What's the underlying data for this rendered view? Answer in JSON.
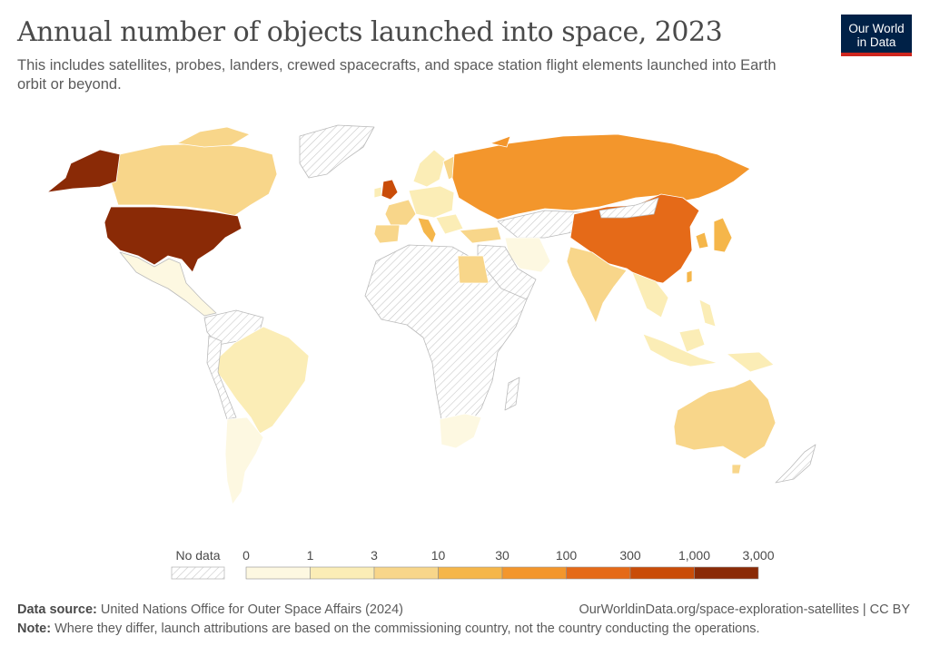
{
  "title": "Annual number of objects launched into space, 2023",
  "subtitle": "This includes satellites, probes, landers, crewed spacecrafts, and space station flight elements launched into Earth orbit or beyond.",
  "logo": {
    "line1": "Our World",
    "line2": "in Data"
  },
  "legend": {
    "no_data_label": "No data",
    "tick_labels": [
      "0",
      "1",
      "3",
      "10",
      "30",
      "100",
      "300",
      "1,000",
      "3,000"
    ],
    "colors": [
      "#fdf8e1",
      "#fbedb6",
      "#f8d68a",
      "#f5b64a",
      "#f3962c",
      "#e56a18",
      "#c94c08",
      "#8a2a06"
    ]
  },
  "map_data": {
    "type": "choropleth",
    "metric": "Annual number of objects launched into space",
    "year": "2023",
    "bins": [
      "0",
      "1",
      "3",
      "10",
      "30",
      "100",
      "300",
      "1,000",
      "3,000"
    ],
    "regions": [
      {
        "name": "United States",
        "bin": 7,
        "color": "#8a2a06"
      },
      {
        "name": "Alaska (US)",
        "bin": 7,
        "color": "#8a2a06"
      },
      {
        "name": "China",
        "bin": 5,
        "color": "#e56a18"
      },
      {
        "name": "United Kingdom",
        "bin": 6,
        "color": "#c94c08"
      },
      {
        "name": "Russia",
        "bin": 4,
        "color": "#f3962c"
      },
      {
        "name": "Canada",
        "bin": 2,
        "color": "#f8d68a"
      },
      {
        "name": "Japan",
        "bin": 3,
        "color": "#f5b64a"
      },
      {
        "name": "India",
        "bin": 2,
        "color": "#f8d68a"
      },
      {
        "name": "France",
        "bin": 2,
        "color": "#f8d68a"
      },
      {
        "name": "Italy",
        "bin": 3,
        "color": "#f5b64a"
      },
      {
        "name": "Spain",
        "bin": 2,
        "color": "#f8d68a"
      },
      {
        "name": "Finland",
        "bin": 2,
        "color": "#f8d68a"
      },
      {
        "name": "Turkey",
        "bin": 2,
        "color": "#f8d68a"
      },
      {
        "name": "Egypt",
        "bin": 2,
        "color": "#f8d68a"
      },
      {
        "name": "Australia",
        "bin": 2,
        "color": "#f8d68a"
      },
      {
        "name": "South Korea",
        "bin": 3,
        "color": "#f5b64a"
      },
      {
        "name": "Taiwan",
        "bin": 3,
        "color": "#f5b64a"
      },
      {
        "name": "Brazil",
        "bin": 1,
        "color": "#fbedb6"
      },
      {
        "name": "Argentina",
        "bin": 0,
        "color": "#fdf8e1"
      },
      {
        "name": "South Africa",
        "bin": 0,
        "color": "#fdf8e1"
      },
      {
        "name": "Iran",
        "bin": 0,
        "color": "#fdf8e1"
      },
      {
        "name": "Indonesia",
        "bin": 1,
        "color": "#fbedb6"
      },
      {
        "name": "Mexico",
        "bin": 0,
        "color": "#fdf8e1"
      },
      {
        "name": "Greenland",
        "bin": -1,
        "color": "no data"
      },
      {
        "name": "Africa (most)",
        "bin": -1,
        "color": "no data"
      }
    ]
  },
  "footer": {
    "source_label": "Data source:",
    "source_text": "United Nations Office for Outer Space Affairs (2024)",
    "right_text": "OurWorldinData.org/space-exploration-satellites | CC BY",
    "note_label": "Note:",
    "note_text": "Where they differ, launch attributions are based on the commissioning country, not the country conducting the operations."
  }
}
